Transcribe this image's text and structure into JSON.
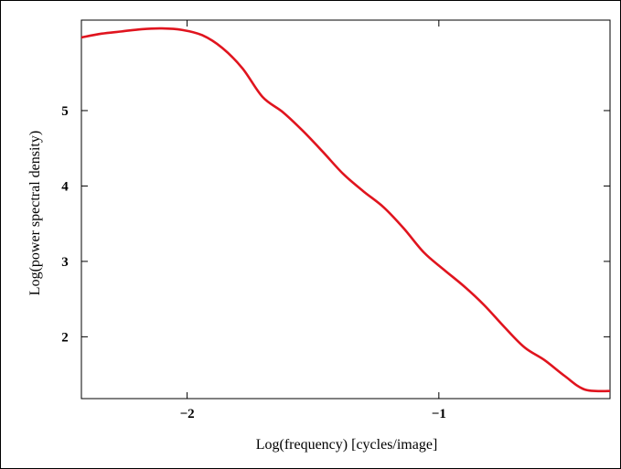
{
  "chart_data": {
    "type": "line",
    "title": "",
    "xlabel": "Log(frequency) [cycles/image]",
    "ylabel": "Log(power spectral density)",
    "xlim": [
      -2.42,
      -0.32
    ],
    "ylim": [
      1.18,
      6.2
    ],
    "xticks": [
      -2,
      -1
    ],
    "xtick_labels": [
      "−2",
      "−1"
    ],
    "yticks": [
      2,
      3,
      4,
      5
    ],
    "ytick_labels": [
      "2",
      "3",
      "4",
      "5"
    ],
    "grid": false,
    "legend": "none",
    "line_color": "#e0141e",
    "series": [
      {
        "x": [
          -2.42,
          -2.34,
          -2.26,
          -2.18,
          -2.1,
          -2.02,
          -1.94,
          -1.86,
          -1.78,
          -1.7,
          -1.62,
          -1.54,
          -1.46,
          -1.38,
          -1.3,
          -1.22,
          -1.14,
          -1.06,
          -0.98,
          -0.9,
          -0.82,
          -0.74,
          -0.66,
          -0.58,
          -0.5,
          -0.42,
          -0.32
        ],
        "y": [
          5.97,
          6.02,
          6.05,
          6.08,
          6.09,
          6.07,
          6.0,
          5.83,
          5.56,
          5.18,
          4.98,
          4.73,
          4.45,
          4.16,
          3.93,
          3.72,
          3.44,
          3.12,
          2.89,
          2.67,
          2.42,
          2.13,
          1.86,
          1.69,
          1.48,
          1.3,
          1.28
        ]
      }
    ]
  }
}
